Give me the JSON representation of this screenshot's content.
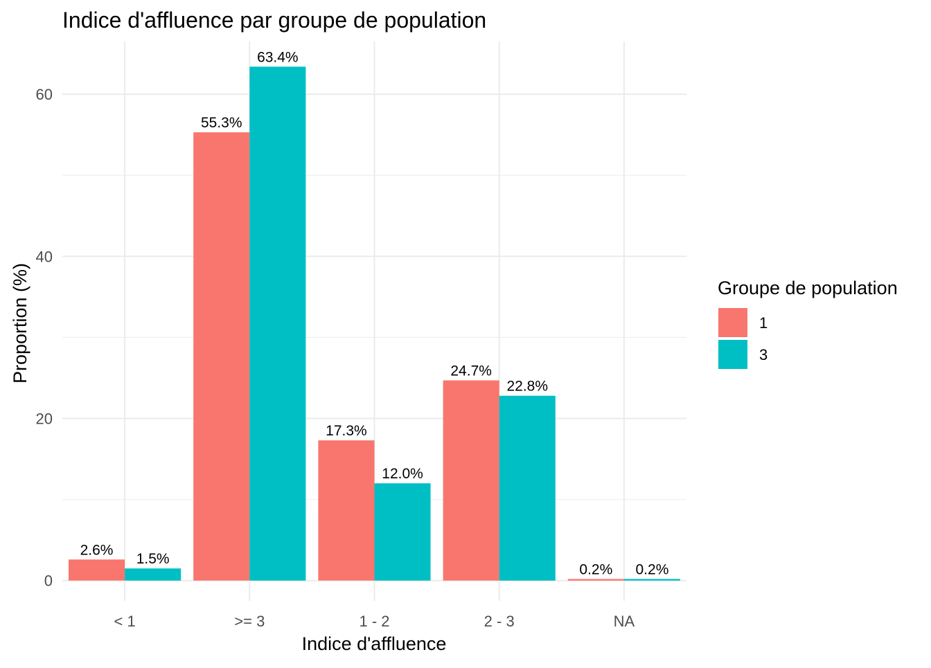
{
  "chart_data": {
    "type": "bar",
    "title": "Indice d'affluence par groupe de population",
    "xlabel": "Indice d'affluence",
    "ylabel": "Proportion (%)",
    "categories": [
      "< 1",
      ">= 3",
      "1 - 2",
      "2 - 3",
      "NA"
    ],
    "series": [
      {
        "name": "1",
        "color": "#F8766D",
        "values": [
          2.6,
          55.3,
          17.3,
          24.7,
          0.2
        ],
        "labels": [
          "2.6%",
          "55.3%",
          "17.3%",
          "24.7%",
          "0.2%"
        ]
      },
      {
        "name": "3",
        "color": "#00BFC4",
        "values": [
          1.5,
          63.4,
          12.0,
          22.8,
          0.2
        ],
        "labels": [
          "1.5%",
          "63.4%",
          "12.0%",
          "22.8%",
          "0.2%"
        ]
      }
    ],
    "ylim": [
      -2.5,
      66.5
    ],
    "yticks": [
      "0",
      "20",
      "40",
      "60"
    ],
    "grid": true,
    "legend": {
      "title": "Groupe de population",
      "position": "right"
    }
  }
}
